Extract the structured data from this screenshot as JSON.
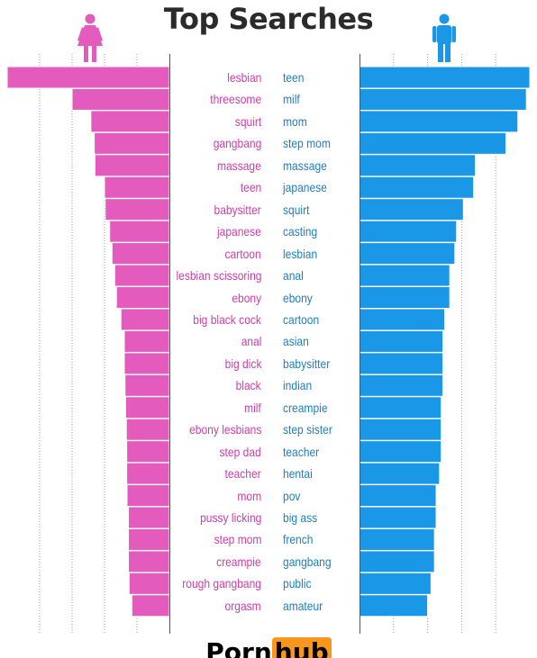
{
  "title": "Top Searches",
  "colors": {
    "female": "#e35bbd",
    "male": "#1a97e6",
    "female_text": "#cc3fa8",
    "male_text": "#1e7fc0"
  },
  "icons": {
    "female": "woman-icon",
    "male": "man-icon"
  },
  "logo": {
    "part1": "Porn",
    "part2": "hub"
  },
  "chart_data": [
    {
      "type": "bar",
      "orientation": "horizontal",
      "direction": "leftward",
      "name": "female",
      "categories": [
        "lesbian",
        "threesome",
        "squirt",
        "gangbang",
        "massage",
        "teen",
        "babysitter",
        "japanese",
        "cartoon",
        "lesbian scissoring",
        "ebony",
        "big black cock",
        "anal",
        "big dick",
        "black",
        "milf",
        "ebony lesbians",
        "step dad",
        "teacher",
        "mom",
        "pussy licking",
        "step mom",
        "creampie",
        "rough gangbang",
        "orgasm"
      ],
      "values": [
        4.75,
        2.85,
        2.3,
        2.2,
        2.18,
        1.9,
        1.88,
        1.75,
        1.68,
        1.6,
        1.55,
        1.42,
        1.32,
        1.32,
        1.3,
        1.28,
        1.26,
        1.25,
        1.25,
        1.24,
        1.2,
        1.2,
        1.2,
        1.18,
        1.1
      ],
      "xlim": [
        0,
        4.75
      ],
      "grid": true
    },
    {
      "type": "bar",
      "orientation": "horizontal",
      "direction": "rightward",
      "name": "male",
      "categories": [
        "teen",
        "milf",
        "mom",
        "step mom",
        "massage",
        "japanese",
        "squirt",
        "casting",
        "lesbian",
        "anal",
        "ebony",
        "cartoon",
        "asian",
        "babysitter",
        "indian",
        "creampie",
        "step sister",
        "teacher",
        "hentai",
        "pov",
        "big ass",
        "french",
        "gangbang",
        "public",
        "amateur"
      ],
      "values": [
        5.0,
        4.9,
        4.65,
        4.3,
        3.4,
        3.35,
        3.05,
        2.85,
        2.8,
        2.65,
        2.65,
        2.5,
        2.45,
        2.45,
        2.45,
        2.4,
        2.4,
        2.4,
        2.35,
        2.25,
        2.25,
        2.2,
        2.2,
        2.1,
        2.0
      ],
      "xlim": [
        0,
        5.0
      ],
      "grid": true
    }
  ]
}
